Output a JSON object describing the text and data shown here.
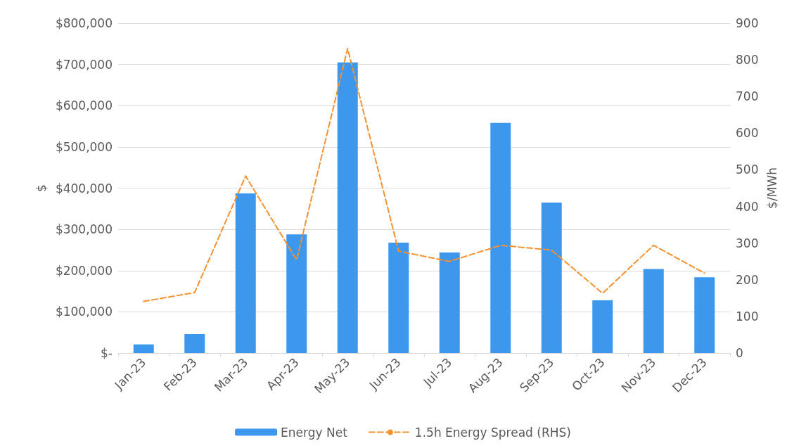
{
  "chart_data": {
    "type": "bar",
    "ylabel": "$",
    "y2label": "$/MWh",
    "categories": [
      "Jan-23",
      "Feb-23",
      "Mar-23",
      "Apr-23",
      "May-23",
      "Jun-23",
      "Jul-23",
      "Aug-23",
      "Sep-23",
      "Oct-23",
      "Nov-23",
      "Dec-23"
    ],
    "series": [
      {
        "name": "Energy Net",
        "color": "#3d97ec",
        "values": [
          21000,
          46000,
          387000,
          288000,
          705000,
          268000,
          244000,
          558000,
          365000,
          128000,
          204000,
          184000
        ]
      },
      {
        "name": "1.5h Energy Spread (RHS)",
        "type": "line",
        "axis": "y2",
        "color": "#f5922f",
        "line_style": "dashed",
        "marker": "none",
        "values": [
          141,
          165,
          483,
          254,
          831,
          278,
          250,
          294,
          281,
          163,
          294,
          218
        ]
      }
    ],
    "ylim": [
      0,
      800000
    ],
    "yticks": [
      {
        "value": 0,
        "label": "$-"
      },
      {
        "value": 100000,
        "label": "$100,000"
      },
      {
        "value": 200000,
        "label": "$200,000"
      },
      {
        "value": 300000,
        "label": "$300,000"
      },
      {
        "value": 400000,
        "label": "$400,000"
      },
      {
        "value": 500000,
        "label": "$500,000"
      },
      {
        "value": 600000,
        "label": "$600,000"
      },
      {
        "value": 700000,
        "label": "$700,000"
      },
      {
        "value": 800000,
        "label": "$800,000"
      }
    ],
    "y2lim": [
      0,
      900
    ],
    "y2ticks": [
      0,
      100,
      200,
      300,
      400,
      500,
      600,
      700,
      800,
      900
    ],
    "grid": "y",
    "legend": "bottom"
  }
}
